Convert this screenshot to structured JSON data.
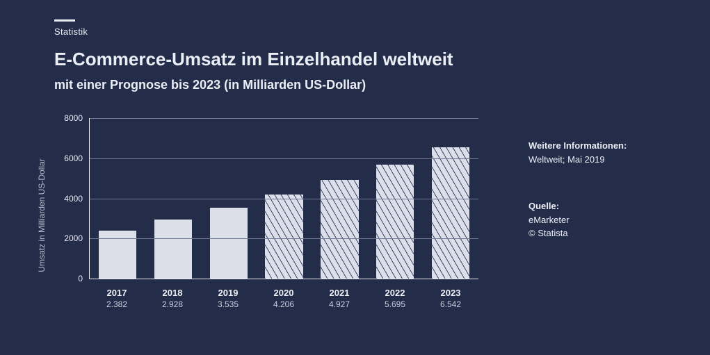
{
  "kicker": "Statistik",
  "title": "E-Commerce-Umsatz im Einzelhandel weltweit",
  "subtitle": "mit einer Prognose bis 2023 (in Milliarden US-Dollar)",
  "chart": {
    "type": "bar",
    "yaxis_label": "Umsatz in Milliarden US-Dollar",
    "ylim": [
      0,
      8000
    ],
    "ytick_step": 2000,
    "yticks": [
      0,
      2000,
      4000,
      6000,
      8000
    ],
    "background_color": "#232d4a",
    "bar_color_solid": "#dcdee8",
    "bar_color_hatch_stripe": "#3a4570",
    "grid_color": "#6f7894",
    "axis_color": "#eceef5",
    "text_color": "#eceef5",
    "label_fontsize": 12,
    "xlabel_fontsize_bold": 13,
    "bar_width_ratio": 0.68,
    "categories": [
      "2017",
      "2018",
      "2019",
      "2020",
      "2021",
      "2022",
      "2023"
    ],
    "values": [
      2382,
      2928,
      3535,
      4206,
      4927,
      5695,
      6542
    ],
    "value_labels": [
      "2.382",
      "2.928",
      "3.535",
      "4.206",
      "4.927",
      "5.695",
      "6.542"
    ],
    "forecast_flags": [
      false,
      false,
      false,
      true,
      true,
      true,
      true
    ]
  },
  "side": {
    "info_heading": "Weitere Informationen:",
    "info_text": "Weltweit; Mai 2019",
    "source_heading": "Quelle:",
    "source_text": "eMarketer",
    "copyright": "© Statista"
  }
}
